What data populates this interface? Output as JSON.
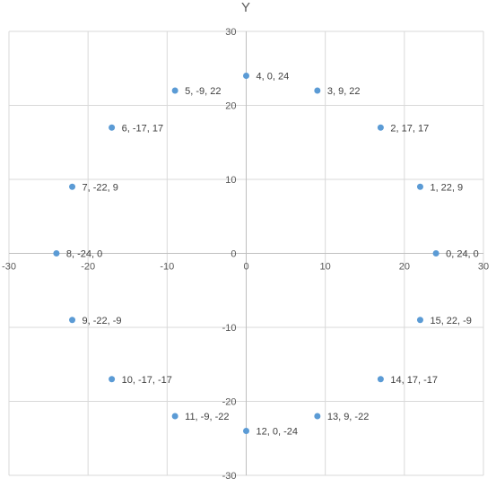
{
  "chart_data": {
    "type": "scatter",
    "title": "",
    "xlabel": "",
    "ylabel": "Y",
    "xlim": [
      -30,
      30
    ],
    "ylim": [
      -30,
      30
    ],
    "grid": true,
    "x_ticks": [
      "-30",
      "-20",
      "-10",
      "0",
      "10",
      "20",
      "30"
    ],
    "y_ticks": [
      "30",
      "20",
      "10",
      "0",
      "-10",
      "-20",
      "-30"
    ],
    "point_color": "#5b9bd5",
    "points": [
      {
        "x": 24,
        "y": 0,
        "label": "0, 24, 0"
      },
      {
        "x": 22,
        "y": 9,
        "label": "1, 22, 9"
      },
      {
        "x": 17,
        "y": 17,
        "label": "2, 17, 17"
      },
      {
        "x": 9,
        "y": 22,
        "label": "3, 9, 22"
      },
      {
        "x": 0,
        "y": 24,
        "label": "4, 0, 24"
      },
      {
        "x": -9,
        "y": 22,
        "label": "5, -9, 22"
      },
      {
        "x": -17,
        "y": 17,
        "label": "6, -17, 17"
      },
      {
        "x": -22,
        "y": 9,
        "label": "7, -22, 9"
      },
      {
        "x": -24,
        "y": 0,
        "label": "8, -24, 0"
      },
      {
        "x": -22,
        "y": -9,
        "label": "9, -22, -9"
      },
      {
        "x": -17,
        "y": -17,
        "label": "10, -17, -17"
      },
      {
        "x": -9,
        "y": -22,
        "label": "11, -9, -22"
      },
      {
        "x": 0,
        "y": -24,
        "label": "12, 0, -24"
      },
      {
        "x": 9,
        "y": -22,
        "label": "13, 9, -22"
      },
      {
        "x": 17,
        "y": -17,
        "label": "14, 17, -17"
      },
      {
        "x": 22,
        "y": -9,
        "label": "15, 22, -9"
      }
    ]
  }
}
